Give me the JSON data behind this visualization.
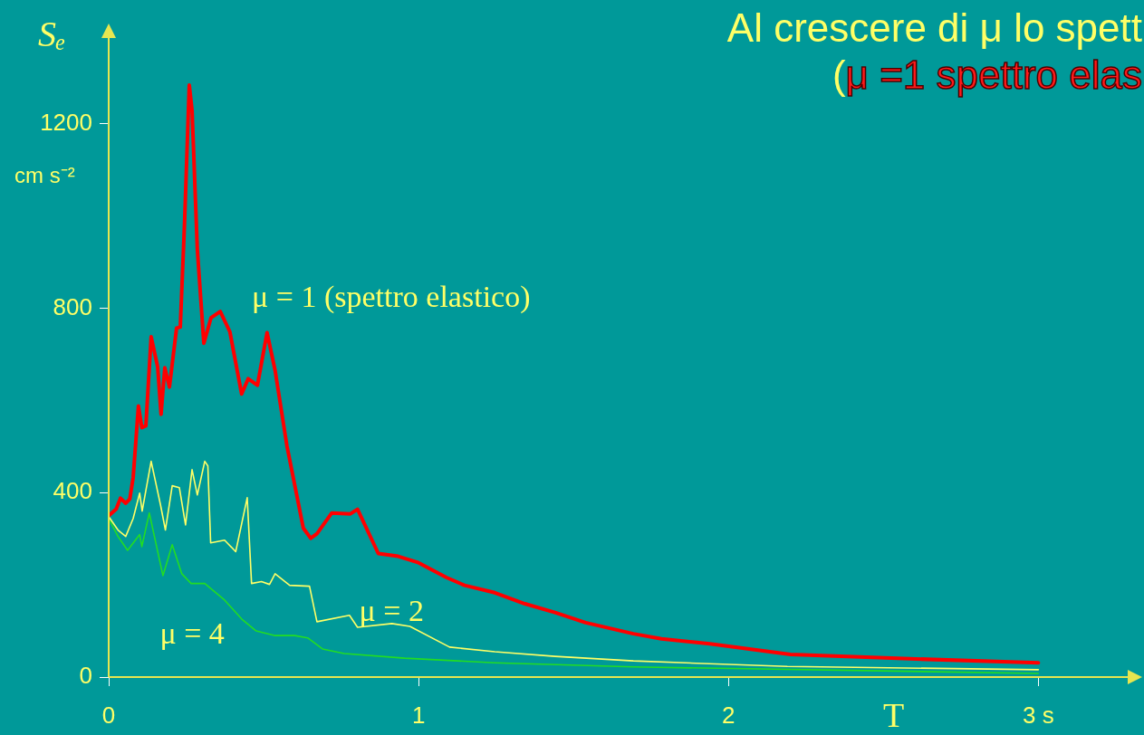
{
  "chart_data": {
    "type": "line",
    "title": "Al crescere di μ lo spett",
    "subtitle": "(μ =1 spettro elas",
    "ylabel": "Sₑ",
    "xlabel": "T",
    "annotations": [
      "cm s⁻²"
    ],
    "xlim": [
      0,
      3.3
    ],
    "ylim": [
      0,
      1390
    ],
    "xticks": [
      0,
      1,
      2,
      {
        "value": 3,
        "label": "3 s"
      }
    ],
    "yticks": [
      0,
      400,
      800,
      1200
    ],
    "grid": false,
    "legend": false,
    "marker": "none",
    "line_style": "solid",
    "series": [
      {
        "name": "μ = 1 (spettro elastico)",
        "color": "#ff0000",
        "x": [
          0,
          0.024,
          0.038,
          0.055,
          0.068,
          0.079,
          0.096,
          0.107,
          0.12,
          0.137,
          0.158,
          0.169,
          0.181,
          0.196,
          0.219,
          0.231,
          0.245,
          0.26,
          0.269,
          0.286,
          0.307,
          0.33,
          0.36,
          0.391,
          0.429,
          0.45,
          0.48,
          0.511,
          0.537,
          0.575,
          0.628,
          0.652,
          0.672,
          0.72,
          0.78,
          0.803,
          0.87,
          0.934,
          1.0,
          1.09,
          1.148,
          1.246,
          1.343,
          1.44,
          1.539,
          1.693,
          1.784,
          1.94,
          2.2,
          2.525,
          3.0
        ],
        "values": [
          350,
          364,
          388,
          377,
          386,
          433,
          588,
          541,
          545,
          738,
          673,
          570,
          671,
          629,
          757,
          759,
          989,
          1284,
          1229,
          928,
          724,
          779,
          793,
          749,
          614,
          647,
          633,
          747,
          665,
          502,
          323,
          301,
          311,
          356,
          354,
          364,
          268,
          262,
          248,
          216,
          199,
          183,
          159,
          140,
          118,
          94,
          83,
          72,
          49,
          41,
          31
        ]
      },
      {
        "name": "μ = 2",
        "color": "#ffff66",
        "x": [
          0,
          0.03,
          0.055,
          0.079,
          0.1,
          0.108,
          0.137,
          0.167,
          0.183,
          0.205,
          0.228,
          0.248,
          0.269,
          0.286,
          0.31,
          0.32,
          0.329,
          0.374,
          0.41,
          0.447,
          0.461,
          0.493,
          0.519,
          0.537,
          0.584,
          0.648,
          0.672,
          0.777,
          0.803,
          0.914,
          0.972,
          1.1,
          1.246,
          1.44,
          1.693,
          2.19,
          3.0
        ],
        "values": [
          348,
          319,
          305,
          344,
          399,
          360,
          468,
          374,
          319,
          415,
          411,
          330,
          450,
          395,
          468,
          458,
          291,
          297,
          272,
          389,
          203,
          207,
          201,
          224,
          199,
          197,
          120,
          134,
          108,
          116,
          110,
          65,
          55,
          45,
          35,
          23,
          16
        ]
      },
      {
        "name": "μ = 4",
        "color": "#22dd22",
        "x": [
          0,
          0.03,
          0.061,
          0.1,
          0.107,
          0.131,
          0.175,
          0.205,
          0.236,
          0.266,
          0.31,
          0.374,
          0.429,
          0.476,
          0.537,
          0.6,
          0.642,
          0.69,
          0.76,
          0.955,
          1.246,
          1.693,
          3.0
        ],
        "values": [
          344,
          305,
          275,
          309,
          283,
          356,
          220,
          287,
          224,
          203,
          203,
          167,
          126,
          100,
          90,
          90,
          85,
          61,
          51,
          41,
          31,
          22,
          8
        ]
      }
    ]
  }
}
